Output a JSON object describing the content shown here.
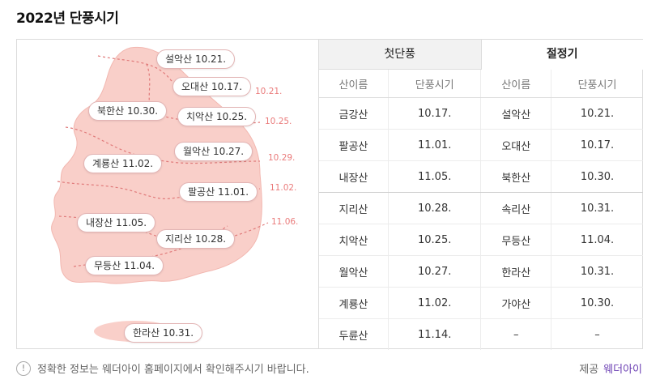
{
  "title": "2022년 단풍시기",
  "map": {
    "pins": [
      {
        "name": "설악산",
        "date": "10.21."
      },
      {
        "name": "오대산",
        "date": "10.17."
      },
      {
        "name": "북한산",
        "date": "10.30."
      },
      {
        "name": "치악산",
        "date": "10.25."
      },
      {
        "name": "월악산",
        "date": "10.27."
      },
      {
        "name": "계룡산",
        "date": "11.02."
      },
      {
        "name": "팔공산",
        "date": "11.01."
      },
      {
        "name": "내장산",
        "date": "11.05."
      },
      {
        "name": "지리산",
        "date": "10.28."
      },
      {
        "name": "무등산",
        "date": "11.04."
      },
      {
        "name": "한라산",
        "date": "10.31."
      }
    ],
    "isolines": [
      "10.21.",
      "10.25.",
      "10.29.",
      "11.02.",
      "11.06."
    ],
    "colors": {
      "land": "#f9cfc9",
      "line": "#e07a7a",
      "label": "#ea7b7b"
    }
  },
  "tabs": [
    {
      "label": "첫단풍",
      "active": false
    },
    {
      "label": "절정기",
      "active": true
    }
  ],
  "columns": [
    "산이름",
    "단풍시기",
    "산이름",
    "단풍시기"
  ],
  "rows": [
    [
      "금강산",
      "10.17.",
      "설악산",
      "10.21."
    ],
    [
      "팔공산",
      "11.01.",
      "오대산",
      "10.17."
    ],
    [
      "내장산",
      "11.05.",
      "북한산",
      "10.30."
    ],
    [
      "지리산",
      "10.28.",
      "속리산",
      "10.31."
    ],
    [
      "치악산",
      "10.25.",
      "무등산",
      "11.04."
    ],
    [
      "월악산",
      "10.27.",
      "한라산",
      "10.31."
    ],
    [
      "계룡산",
      "11.02.",
      "가야산",
      "10.30."
    ],
    [
      "두륜산",
      "11.14.",
      "–",
      "–"
    ]
  ],
  "notice": "정확한 정보는 웨더아이 홈페이지에서 확인해주시기 바랍니다.",
  "credit": {
    "label": "제공",
    "brand": "웨더아이"
  }
}
